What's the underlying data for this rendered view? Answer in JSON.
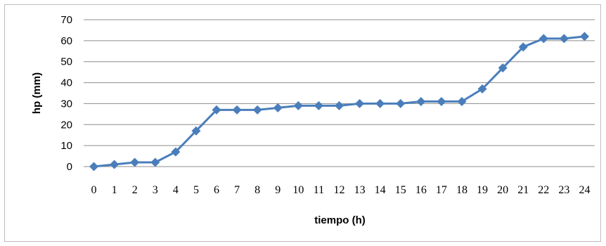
{
  "chart_data": {
    "type": "line",
    "title": "",
    "xlabel": "tiempo (h)",
    "ylabel": "hp (mm)",
    "x": [
      0,
      1,
      2,
      3,
      4,
      5,
      6,
      7,
      8,
      9,
      10,
      11,
      12,
      13,
      14,
      15,
      16,
      17,
      18,
      19,
      20,
      21,
      22,
      23,
      24
    ],
    "x_tick_labels": [
      "0",
      "1",
      "2",
      "3",
      "4",
      "5",
      "6",
      "7",
      "8",
      "9",
      "10",
      "11",
      "12",
      "13",
      "14",
      "15",
      "16",
      "17",
      "18",
      "19",
      "20",
      "21",
      "22",
      "23",
      "24"
    ],
    "y_tick_labels": [
      "0",
      "10",
      "20",
      "30",
      "40",
      "50",
      "60",
      "70"
    ],
    "ylim": [
      0,
      70
    ],
    "grid": "horizontal",
    "legend": "none",
    "series": [
      {
        "values": [
          0,
          1,
          2,
          2,
          7,
          17,
          27,
          27,
          27,
          28,
          29,
          29,
          29,
          30,
          30,
          30,
          31,
          31,
          31,
          37,
          47,
          57,
          61,
          61,
          62
        ],
        "color": "#4a7ebb",
        "marker": "diamond"
      }
    ]
  }
}
